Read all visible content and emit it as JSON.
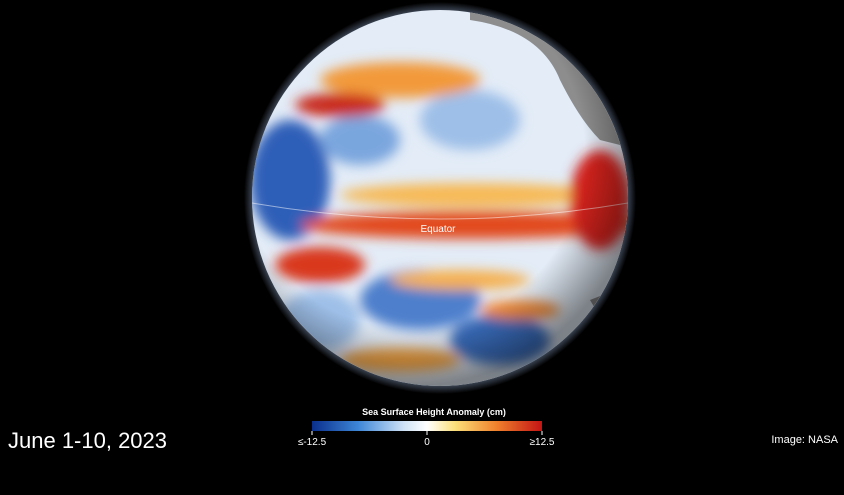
{
  "map": {
    "equator_label": "Equator",
    "date": "June 1-10, 2023",
    "credit": "Image: NASA"
  },
  "legend": {
    "title": "Sea Surface Height Anomaly (cm)",
    "lim": [
      -12.5,
      12.5
    ],
    "ticks": [
      {
        "value": -12.5,
        "label": "≤-12.5"
      },
      0,
      {
        "value": 12.5,
        "label": "≥12.5"
      }
    ]
  }
}
